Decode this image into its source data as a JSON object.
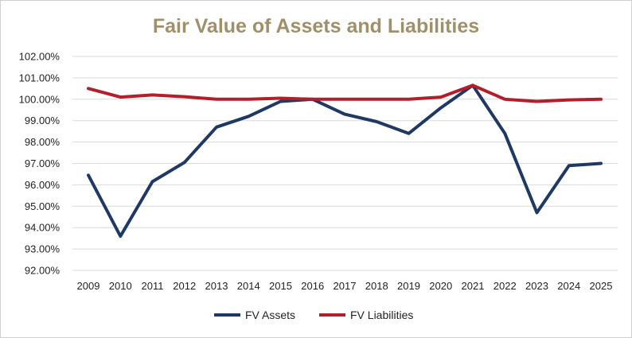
{
  "chart_data": {
    "type": "line",
    "title": "Fair Value of Assets and Liabilities",
    "xlabel": "",
    "ylabel": "",
    "categories": [
      "2009",
      "2010",
      "2011",
      "2012",
      "2013",
      "2014",
      "2015",
      "2016",
      "2017",
      "2018",
      "2019",
      "2020",
      "2021",
      "2022",
      "2023",
      "2024",
      "2025"
    ],
    "ylim": [
      92,
      102
    ],
    "yticks": [
      92,
      93,
      94,
      95,
      96,
      97,
      98,
      99,
      100,
      101,
      102
    ],
    "ytick_labels": [
      "92.00%",
      "93.00%",
      "94.00%",
      "95.00%",
      "96.00%",
      "97.00%",
      "98.00%",
      "99.00%",
      "100.00%",
      "101.00%",
      "102.00%"
    ],
    "grid": "horizontal",
    "legend_position": "bottom",
    "series": [
      {
        "name": "FV Assets",
        "color": "#1f3864",
        "values": [
          96.45,
          93.6,
          96.15,
          97.05,
          98.7,
          99.2,
          99.9,
          100.0,
          99.3,
          98.95,
          98.4,
          99.6,
          100.65,
          98.4,
          94.7,
          96.9,
          97.0
        ]
      },
      {
        "name": "FV Liabilities",
        "color": "#b41e2a",
        "values": [
          100.5,
          100.1,
          100.2,
          100.12,
          100.0,
          100.0,
          100.05,
          100.0,
          100.0,
          100.0,
          100.0,
          100.1,
          100.65,
          100.0,
          99.9,
          99.97,
          100.0
        ]
      }
    ],
    "title_color": "#a0906a",
    "grid_color": "#d9d9d9"
  }
}
